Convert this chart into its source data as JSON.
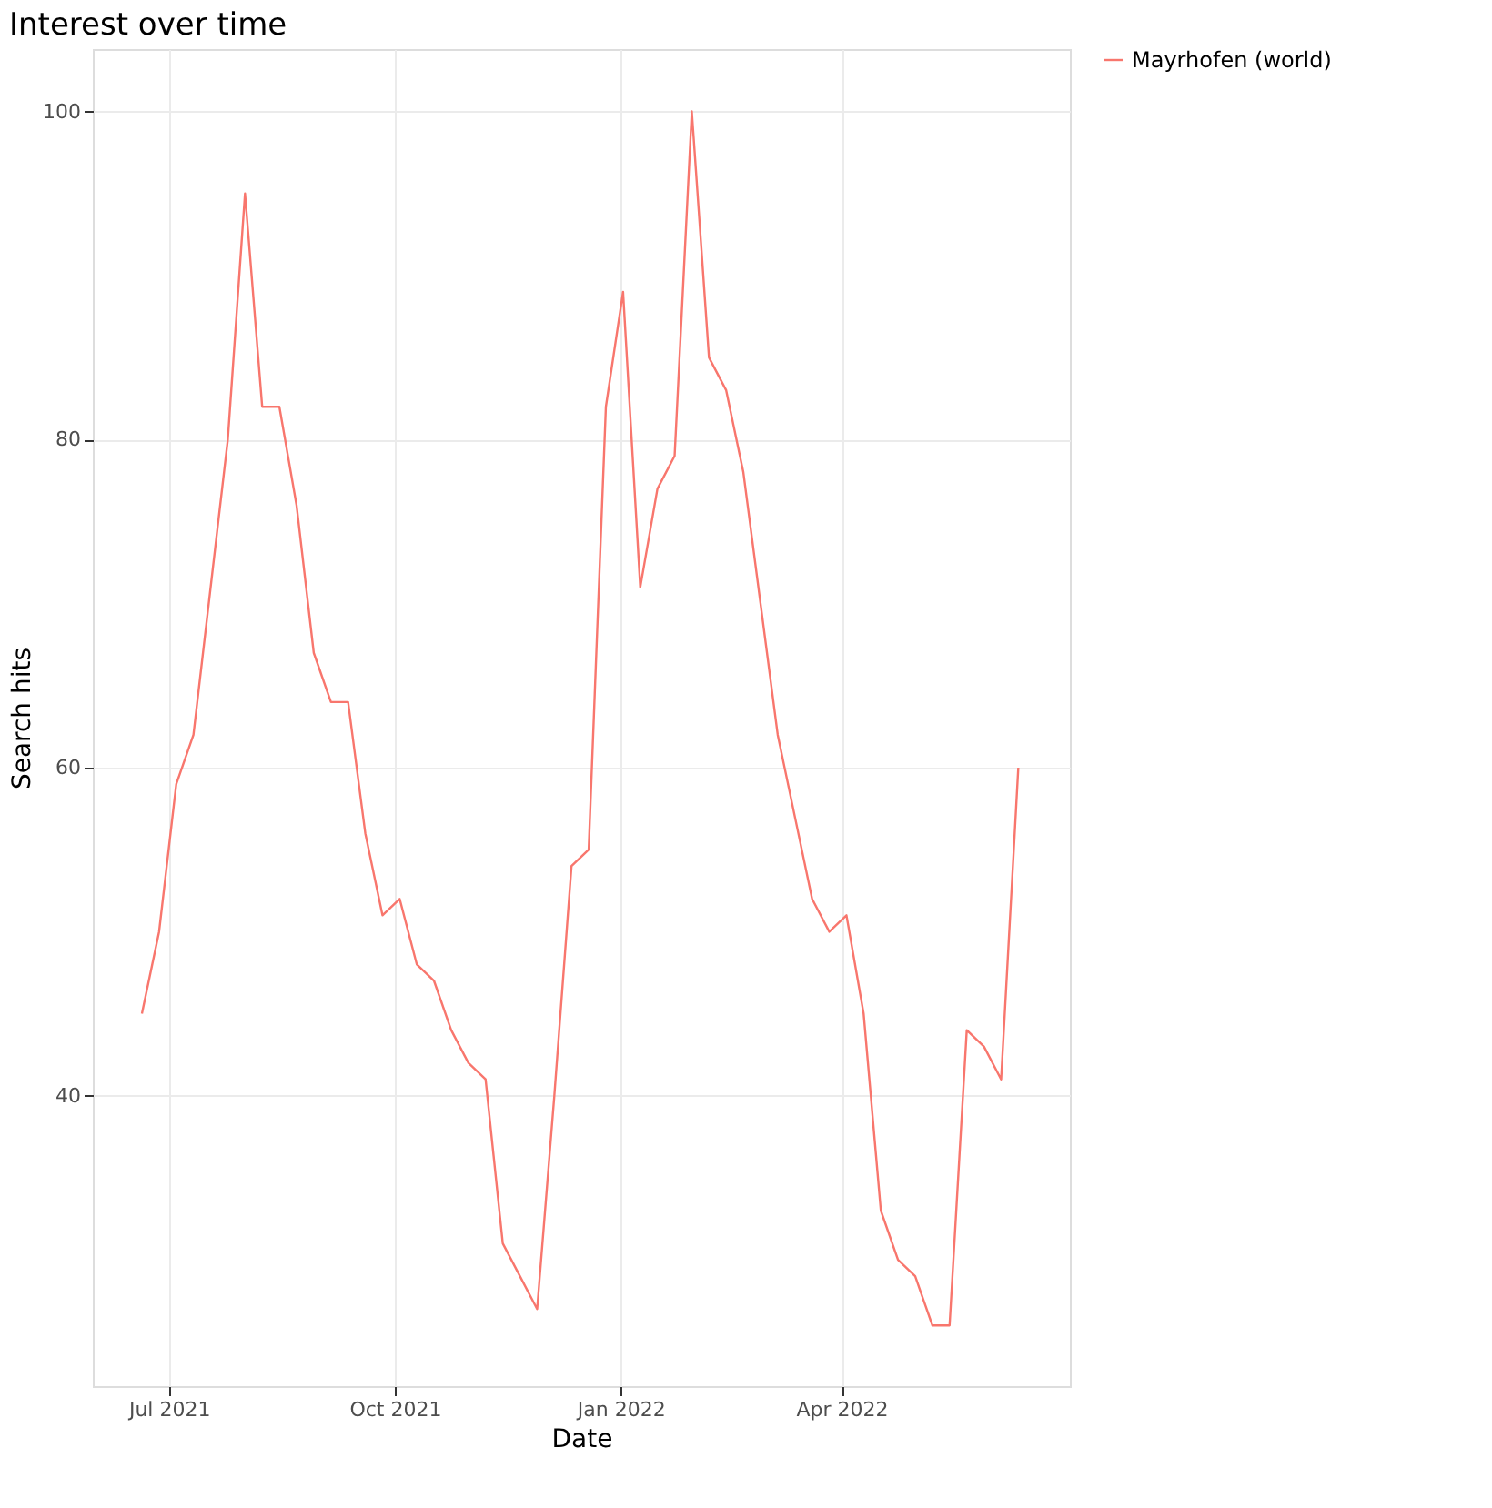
{
  "chart_data": {
    "type": "line",
    "title": "Interest over time",
    "xlabel": "Date",
    "ylabel": "Search hits",
    "x": [
      "2021-06-20",
      "2021-06-27",
      "2021-07-04",
      "2021-07-11",
      "2021-07-18",
      "2021-07-25",
      "2021-08-01",
      "2021-08-08",
      "2021-08-15",
      "2021-08-22",
      "2021-08-29",
      "2021-09-05",
      "2021-09-12",
      "2021-09-19",
      "2021-09-26",
      "2021-10-03",
      "2021-10-10",
      "2021-10-17",
      "2021-10-24",
      "2021-10-31",
      "2021-11-07",
      "2021-11-14",
      "2021-11-21",
      "2021-11-28",
      "2021-12-05",
      "2021-12-12",
      "2021-12-19",
      "2021-12-26",
      "2022-01-02",
      "2022-01-09",
      "2022-01-16",
      "2022-01-23",
      "2022-01-30",
      "2022-02-06",
      "2022-02-13",
      "2022-02-20",
      "2022-02-27",
      "2022-03-06",
      "2022-03-13",
      "2022-03-20",
      "2022-03-27",
      "2022-04-03",
      "2022-04-10",
      "2022-04-17",
      "2022-04-24",
      "2022-05-01",
      "2022-05-08",
      "2022-05-15",
      "2022-05-22",
      "2022-05-29",
      "2022-06-05",
      "2022-06-12"
    ],
    "series": [
      {
        "name": "Mayrhofen (world)",
        "color": "#f8766d",
        "values": [
          45,
          50,
          59,
          62,
          71,
          80,
          95,
          82,
          82,
          76,
          67,
          64,
          64,
          56,
          51,
          52,
          48,
          47,
          44,
          42,
          41,
          31,
          29,
          27,
          40,
          54,
          55,
          82,
          89,
          71,
          77,
          79,
          100,
          85,
          83,
          78,
          70,
          62,
          57,
          52,
          50,
          51,
          45,
          33,
          30,
          29,
          26,
          26,
          44,
          43,
          41,
          60
        ]
      }
    ],
    "xlim": [
      "2021-05-31",
      "2022-07-03"
    ],
    "xticks": [
      {
        "value": "2021-07-01",
        "label": "Jul 2021"
      },
      {
        "value": "2021-10-01",
        "label": "Oct 2021"
      },
      {
        "value": "2022-01-01",
        "label": "Jan 2022"
      },
      {
        "value": "2022-04-01",
        "label": "Apr 2022"
      }
    ],
    "ylim": [
      22.3,
      103.8
    ],
    "yticks": [
      40,
      60,
      80,
      100
    ],
    "grid": true,
    "legend": "right",
    "line_style": "solid",
    "marker": "none"
  }
}
